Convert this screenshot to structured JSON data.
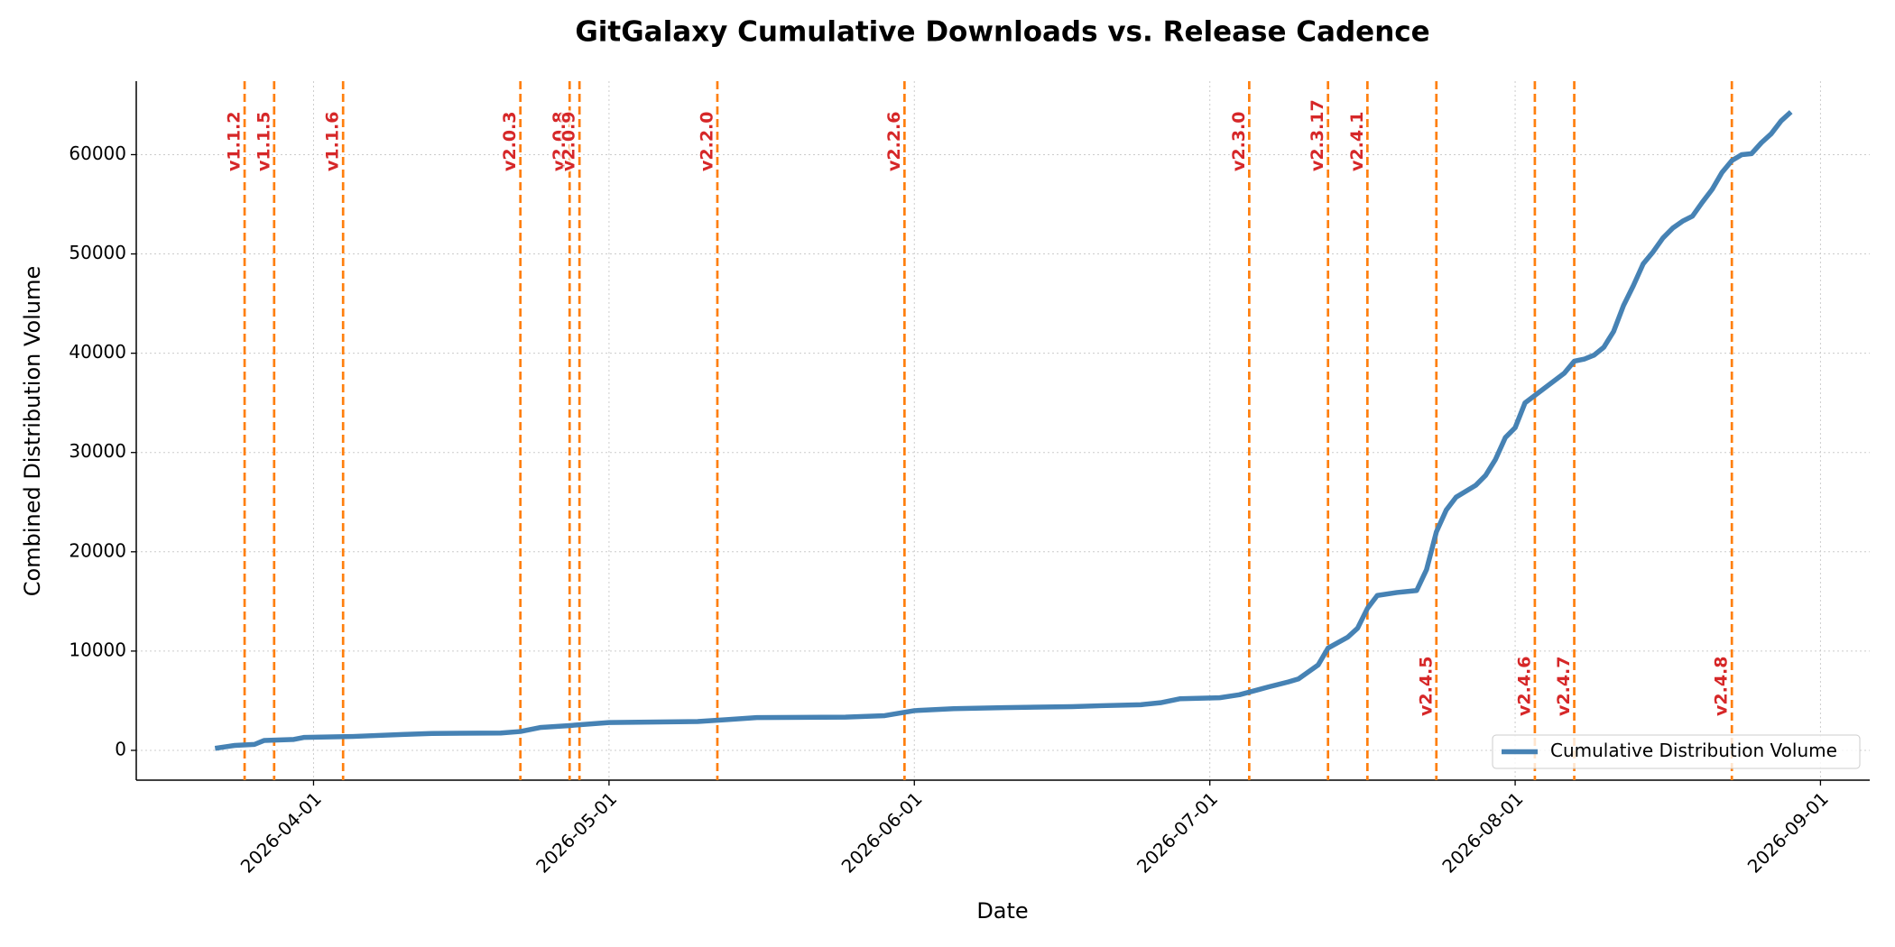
{
  "chart_data": {
    "type": "line",
    "title": "GitGalaxy Cumulative Downloads vs. Release Cadence",
    "x_label": "Date",
    "y_label": "Combined Distribution Volume",
    "x": [
      "2026-03-22",
      "2026-03-24",
      "2026-03-26",
      "2026-03-27",
      "2026-03-30",
      "2026-03-31",
      "2026-04-05",
      "2026-04-10",
      "2026-04-13",
      "2026-04-20",
      "2026-04-22",
      "2026-04-24",
      "2026-04-27",
      "2026-05-01",
      "2026-05-10",
      "2026-05-13",
      "2026-05-16",
      "2026-05-25",
      "2026-05-29",
      "2026-06-01",
      "2026-06-05",
      "2026-06-10",
      "2026-06-17",
      "2026-06-20",
      "2026-06-24",
      "2026-06-26",
      "2026-06-28",
      "2026-07-02",
      "2026-07-04",
      "2026-07-07",
      "2026-07-09",
      "2026-07-10",
      "2026-07-12",
      "2026-07-13",
      "2026-07-15",
      "2026-07-16",
      "2026-07-17",
      "2026-07-18",
      "2026-07-20",
      "2026-07-22",
      "2026-07-23",
      "2026-07-24",
      "2026-07-25",
      "2026-07-26",
      "2026-07-28",
      "2026-07-29",
      "2026-07-30",
      "2026-07-31",
      "2026-08-01",
      "2026-08-02",
      "2026-08-04",
      "2026-08-06",
      "2026-08-07",
      "2026-08-08",
      "2026-08-09",
      "2026-08-10",
      "2026-08-11",
      "2026-08-12",
      "2026-08-13",
      "2026-08-14",
      "2026-08-15",
      "2026-08-16",
      "2026-08-17",
      "2026-08-18",
      "2026-08-19",
      "2026-08-20",
      "2026-08-21",
      "2026-08-22",
      "2026-08-23",
      "2026-08-24",
      "2026-08-25",
      "2026-08-26",
      "2026-08-27",
      "2026-08-28",
      "2026-08-29"
    ],
    "series": [
      {
        "name": "Cumulative Distribution Volume",
        "color": "#4682b4",
        "values": [
          200,
          500,
          600,
          1000,
          1100,
          1300,
          1400,
          1600,
          1700,
          1750,
          1900,
          2300,
          2500,
          2800,
          2900,
          3100,
          3300,
          3350,
          3500,
          4000,
          4200,
          4300,
          4400,
          4500,
          4600,
          4800,
          5200,
          5300,
          5600,
          6400,
          6900,
          7200,
          8600,
          10300,
          11400,
          12300,
          14300,
          15600,
          15900,
          16100,
          18200,
          22000,
          24200,
          25500,
          26700,
          27700,
          29300,
          31500,
          32500,
          35000,
          36500,
          38000,
          39200,
          39400,
          39800,
          40600,
          42200,
          44800,
          46800,
          49000,
          50200,
          51600,
          52600,
          53300,
          53800,
          55200,
          56500,
          58200,
          59400,
          60000,
          60100,
          61200,
          62100,
          63400,
          64300
        ]
      }
    ],
    "releases": [
      {
        "version": "v1.1.2",
        "date": "2026-03-25"
      },
      {
        "version": "v1.1.5",
        "date": "2026-03-28"
      },
      {
        "version": "v1.1.6",
        "date": "2026-04-04"
      },
      {
        "version": "v2.0.3",
        "date": "2026-04-22"
      },
      {
        "version": "v2.0.8",
        "date": "2026-04-27"
      },
      {
        "version": "v2.0.9",
        "date": "2026-04-28"
      },
      {
        "version": "v2.2.0",
        "date": "2026-05-12"
      },
      {
        "version": "v2.2.6",
        "date": "2026-05-31"
      },
      {
        "version": "v2.3.0",
        "date": "2026-07-05"
      },
      {
        "version": "v2.3.17",
        "date": "2026-07-13"
      },
      {
        "version": "v2.4.1",
        "date": "2026-07-17"
      },
      {
        "version": "v2.4.5",
        "date": "2026-07-24"
      },
      {
        "version": "v2.4.6",
        "date": "2026-08-03"
      },
      {
        "version": "v2.4.7",
        "date": "2026-08-07"
      },
      {
        "version": "v2.4.8",
        "date": "2026-08-23"
      }
    ],
    "release_line_color": "#ff7f0e",
    "release_label_color": "#d62728",
    "xlim": [
      "2026-03-14",
      "2026-09-06"
    ],
    "xticks": [
      "2026-04-01",
      "2026-05-01",
      "2026-06-01",
      "2026-07-01",
      "2026-08-01",
      "2026-09-01"
    ],
    "ylim": [
      -3000,
      67400
    ],
    "yticks": [
      0,
      10000,
      20000,
      30000,
      40000,
      50000,
      60000
    ],
    "grid": true,
    "legend": "lower right"
  }
}
